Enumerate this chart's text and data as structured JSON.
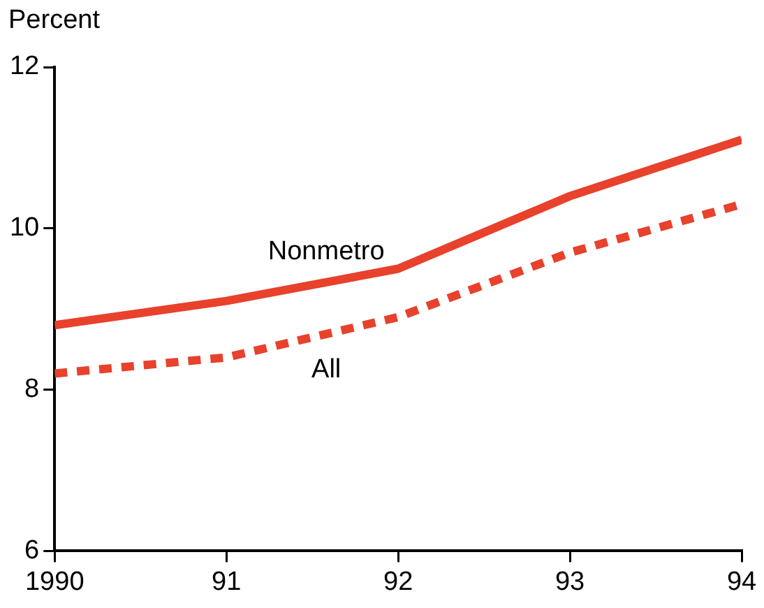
{
  "chart_data": {
    "type": "line",
    "ylabel": "Percent",
    "x": [
      1990,
      1991,
      1992,
      1993,
      1994
    ],
    "xlim": [
      1990,
      1994
    ],
    "xticks": [
      {
        "value": 1990,
        "label": "1990"
      },
      {
        "value": 1991,
        "label": "91"
      },
      {
        "value": 1992,
        "label": "92"
      },
      {
        "value": 1993,
        "label": "93"
      },
      {
        "value": 1994,
        "label": "94"
      }
    ],
    "ylim": [
      6,
      12
    ],
    "yticks": [
      6,
      8,
      10,
      12
    ],
    "grid": false,
    "legend": false,
    "marker": "none",
    "series": [
      {
        "name": "Nonmetro",
        "color": "#e8412c",
        "line_style": "solid",
        "values": [
          8.8,
          9.1,
          9.5,
          10.4,
          11.1
        ]
      },
      {
        "name": "All",
        "color": "#e8412c",
        "line_style": "dotted",
        "values": [
          8.2,
          8.4,
          8.9,
          9.7,
          10.3
        ]
      }
    ]
  }
}
